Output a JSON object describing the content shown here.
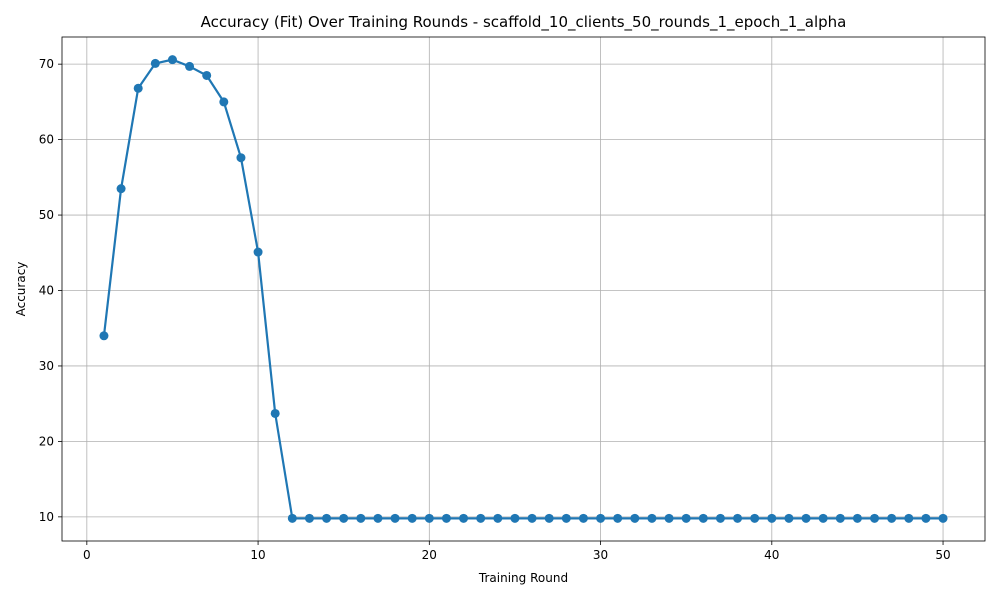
{
  "chart_data": {
    "type": "line",
    "title": "Accuracy (Fit) Over Training Rounds  - scaffold_10_clients_50_rounds_1_epoch_1_alpha",
    "xlabel": "Training Round",
    "ylabel": "Accuracy",
    "xlim": [
      -1.45,
      52.45
    ],
    "ylim": [
      6.8,
      73.6
    ],
    "xticks": [
      0,
      10,
      20,
      30,
      40,
      50
    ],
    "yticks": [
      10,
      20,
      30,
      40,
      50,
      60,
      70
    ],
    "grid": true,
    "color": "#1f77b4",
    "x": [
      1,
      2,
      3,
      4,
      5,
      6,
      7,
      8,
      9,
      10,
      11,
      12,
      13,
      14,
      15,
      16,
      17,
      18,
      19,
      20,
      21,
      22,
      23,
      24,
      25,
      26,
      27,
      28,
      29,
      30,
      31,
      32,
      33,
      34,
      35,
      36,
      37,
      38,
      39,
      40,
      41,
      42,
      43,
      44,
      45,
      46,
      47,
      48,
      49,
      50
    ],
    "y": [
      34.0,
      53.5,
      66.8,
      70.1,
      70.6,
      69.7,
      68.5,
      65.0,
      57.6,
      45.1,
      23.7,
      9.8,
      9.8,
      9.8,
      9.8,
      9.8,
      9.8,
      9.8,
      9.8,
      9.8,
      9.8,
      9.8,
      9.8,
      9.8,
      9.8,
      9.8,
      9.8,
      9.8,
      9.8,
      9.8,
      9.8,
      9.8,
      9.8,
      9.8,
      9.8,
      9.8,
      9.8,
      9.8,
      9.8,
      9.8,
      9.8,
      9.8,
      9.8,
      9.8,
      9.8,
      9.8,
      9.8,
      9.8,
      9.8,
      9.8
    ]
  }
}
